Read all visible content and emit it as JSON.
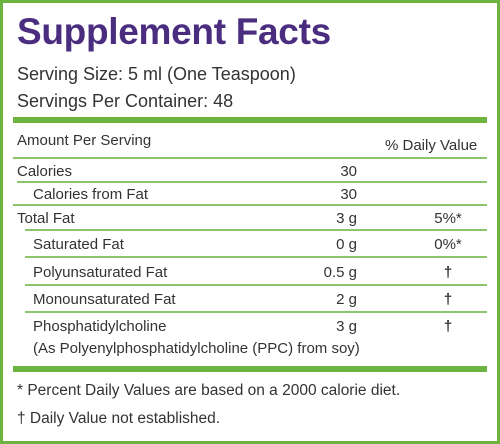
{
  "header": {
    "title": "Supplement Facts",
    "serving_size": "Serving Size: 5 ml (One Teaspoon)",
    "servings_per_container": "Servings Per Container: 48"
  },
  "table": {
    "columns": [
      "Amount Per Serving",
      "% Daily Value"
    ],
    "rows": [
      {
        "name": "Calories",
        "amount": "30"
      },
      {
        "name": "Calories from Fat",
        "amount": "30"
      },
      {
        "name": "Total Fat",
        "amount": "3 g",
        "daily_value": "5%*"
      },
      {
        "name": "Saturated Fat",
        "amount": "0 g",
        "daily_value": "0%*"
      },
      {
        "name": "Polyunsaturated Fat",
        "amount": "0.5 g",
        "daily_value": "†"
      },
      {
        "name": "Monounsaturated Fat",
        "amount": "2 g",
        "daily_value": "†"
      },
      {
        "name": "Phosphatidylcholine",
        "note": "(As Polyenylphosphatidylcholine (PPC) from soy)",
        "amount": "3 g",
        "daily_value": "†"
      }
    ]
  },
  "footnotes": [
    "* Percent Daily Values are based on a 2000 calorie diet.",
    "† Daily Value not established."
  ]
}
